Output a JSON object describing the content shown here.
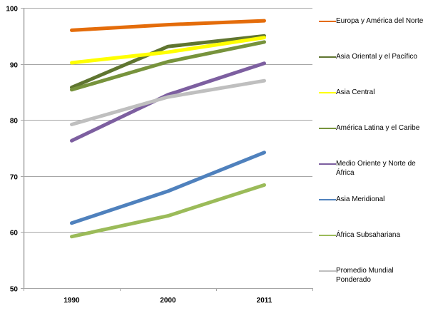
{
  "chart_data": {
    "type": "line",
    "title": "",
    "xlabel": "",
    "ylabel": "",
    "x": [
      "1990",
      "2000",
      "2011"
    ],
    "ylim": [
      50,
      100
    ],
    "yticks": [
      50,
      60,
      70,
      80,
      90,
      100
    ],
    "grid": true,
    "legend_position": "right",
    "series": [
      {
        "name": "Europa y América del Norte",
        "color": "#E46C0A",
        "values": [
          96.0,
          97.0,
          97.7
        ]
      },
      {
        "name": "Asia Oriental y el Pacífico",
        "color": "#5F7530",
        "values": [
          85.8,
          93.1,
          95.0
        ]
      },
      {
        "name": "Asia Central",
        "color": "#FFFF00",
        "values": [
          90.2,
          92.1,
          94.7
        ]
      },
      {
        "name": "América Latina y el Caribe",
        "color": "#77933C",
        "values": [
          85.4,
          90.4,
          93.9
        ]
      },
      {
        "name": "Medio Oriente y Norte de África",
        "color": "#7D5FA0",
        "values": [
          76.3,
          84.5,
          90.1
        ]
      },
      {
        "name": "Asia Meridional",
        "color": "#4F81BD",
        "values": [
          61.6,
          67.3,
          74.2
        ]
      },
      {
        "name": "África Subsahariana",
        "color": "#9BBB59",
        "values": [
          59.2,
          62.9,
          68.4
        ]
      },
      {
        "name": "Promedio Mundial Ponderado",
        "color": "#BFBFBF",
        "values": [
          79.2,
          84.1,
          87.0
        ]
      }
    ]
  }
}
